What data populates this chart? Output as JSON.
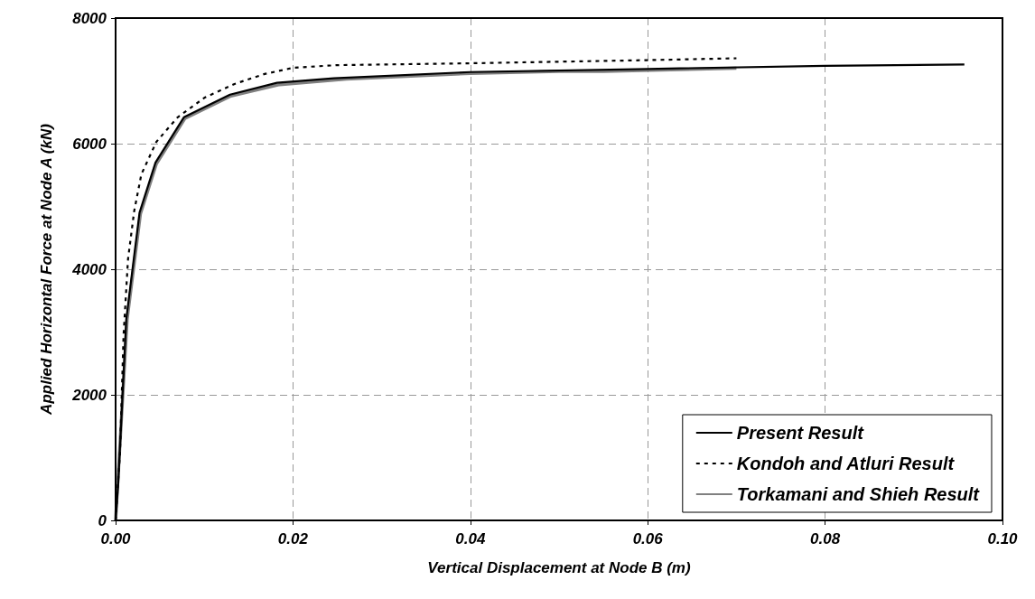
{
  "chart_data": {
    "type": "line",
    "xlabel": "Vertical Displacement at Node B (m)",
    "ylabel": "Applied Horizontal Force at Node A (kN)",
    "xlim": [
      0,
      0.1
    ],
    "xticks": [
      {
        "value": 0,
        "label": "0.00"
      },
      {
        "value": 0.02,
        "label": "0.02"
      },
      {
        "value": 0.04,
        "label": "0.04"
      },
      {
        "value": 0.06,
        "label": "0.06"
      },
      {
        "value": 0.08,
        "label": "0.08"
      },
      {
        "value": 0.1,
        "label": "0.10"
      }
    ],
    "ylim": [
      0,
      8000
    ],
    "yticks": [
      0,
      2000,
      4000,
      6000,
      8000
    ],
    "grid": true,
    "legend": "bottom right",
    "marker": "none",
    "series": [
      {
        "name": "Present Result",
        "color": "#000000",
        "line_style": "solid",
        "x": [
          0,
          0.0003,
          0.0012,
          0.0027,
          0.0045,
          0.0077,
          0.0129,
          0.0182,
          0.0246,
          0.04,
          0.06,
          0.08,
          0.0957
        ],
        "values": [
          0,
          600,
          3200,
          4900,
          5700,
          6420,
          6780,
          6970,
          7040,
          7140,
          7190,
          7240,
          7260
        ]
      },
      {
        "name": "Kondoh and Atluri Result",
        "color": "#000000",
        "line_style": "dashed",
        "x": [
          0,
          0.0005,
          0.0009,
          0.0014,
          0.0021,
          0.0029,
          0.0046,
          0.007,
          0.01,
          0.0134,
          0.0168,
          0.0201,
          0.0249,
          0.04,
          0.06,
          0.07
        ],
        "values": [
          0,
          1090,
          2960,
          4160,
          4930,
          5510,
          6030,
          6420,
          6730,
          6950,
          7110,
          7210,
          7250,
          7280,
          7330,
          7360
        ]
      },
      {
        "name": "Torkamani and Shieh Result",
        "color": "#808080",
        "line_style": "solid",
        "x": [
          0,
          0.0013,
          0.0028,
          0.0046,
          0.0078,
          0.013,
          0.0185,
          0.026,
          0.04,
          0.05,
          0.055,
          0.07
        ],
        "values": [
          0,
          3200,
          4880,
          5680,
          6400,
          6760,
          6940,
          7030,
          7120,
          7150,
          7150,
          7200
        ]
      }
    ]
  }
}
